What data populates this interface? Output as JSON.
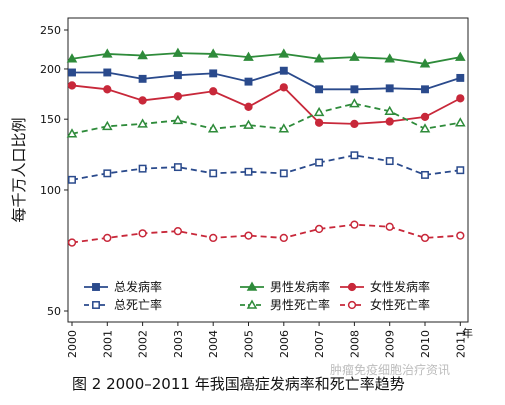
{
  "caption": "图 2  2000–2011 年我国癌症发病率和死亡率趋势",
  "watermark": "肿瘤免疫细胞治疗资讯",
  "chart_data": {
    "type": "line",
    "ylabel": "每千万人口比例",
    "x_unit_label": "年",
    "y_scale": "log",
    "ylim": [
      50,
      250
    ],
    "yticks": [
      50,
      100,
      150,
      200,
      250
    ],
    "categories": [
      "2000",
      "2001",
      "2002",
      "2003",
      "2004",
      "2005",
      "2006",
      "2007",
      "2008",
      "2009",
      "2010",
      "2011"
    ],
    "grid": false,
    "legend_position": "bottom",
    "series": [
      {
        "name": "总发病率",
        "color": "#2a4a8c",
        "marker": "square",
        "filled": true,
        "dashed": false,
        "values": [
          196,
          196,
          189,
          193,
          195,
          186,
          198,
          178,
          178,
          179,
          178,
          190
        ]
      },
      {
        "name": "男性发病率",
        "color": "#2e8b3a",
        "marker": "triangle",
        "filled": true,
        "dashed": false,
        "values": [
          212,
          218,
          216,
          219,
          218,
          214,
          218,
          212,
          214,
          212,
          206,
          214
        ]
      },
      {
        "name": "女性发病率",
        "color": "#c8283a",
        "marker": "circle",
        "filled": true,
        "dashed": false,
        "values": [
          182,
          178,
          167,
          171,
          176,
          161,
          180,
          147,
          146,
          148,
          152,
          169
        ]
      },
      {
        "name": "总死亡率",
        "color": "#2a4a8c",
        "marker": "square",
        "filled": false,
        "dashed": true,
        "values": [
          106,
          110,
          113,
          114,
          110,
          111,
          110,
          117,
          122,
          118,
          109,
          112
        ]
      },
      {
        "name": "男性死亡率",
        "color": "#2e8b3a",
        "marker": "triangle",
        "filled": false,
        "dashed": true,
        "values": [
          138,
          144,
          146,
          149,
          142,
          145,
          142,
          156,
          164,
          157,
          142,
          147
        ]
      },
      {
        "name": "女性死亡率",
        "color": "#c8283a",
        "marker": "circle",
        "filled": false,
        "dashed": true,
        "values": [
          74,
          76,
          78,
          79,
          76,
          77,
          76,
          80,
          82,
          81,
          76,
          77
        ]
      }
    ]
  }
}
